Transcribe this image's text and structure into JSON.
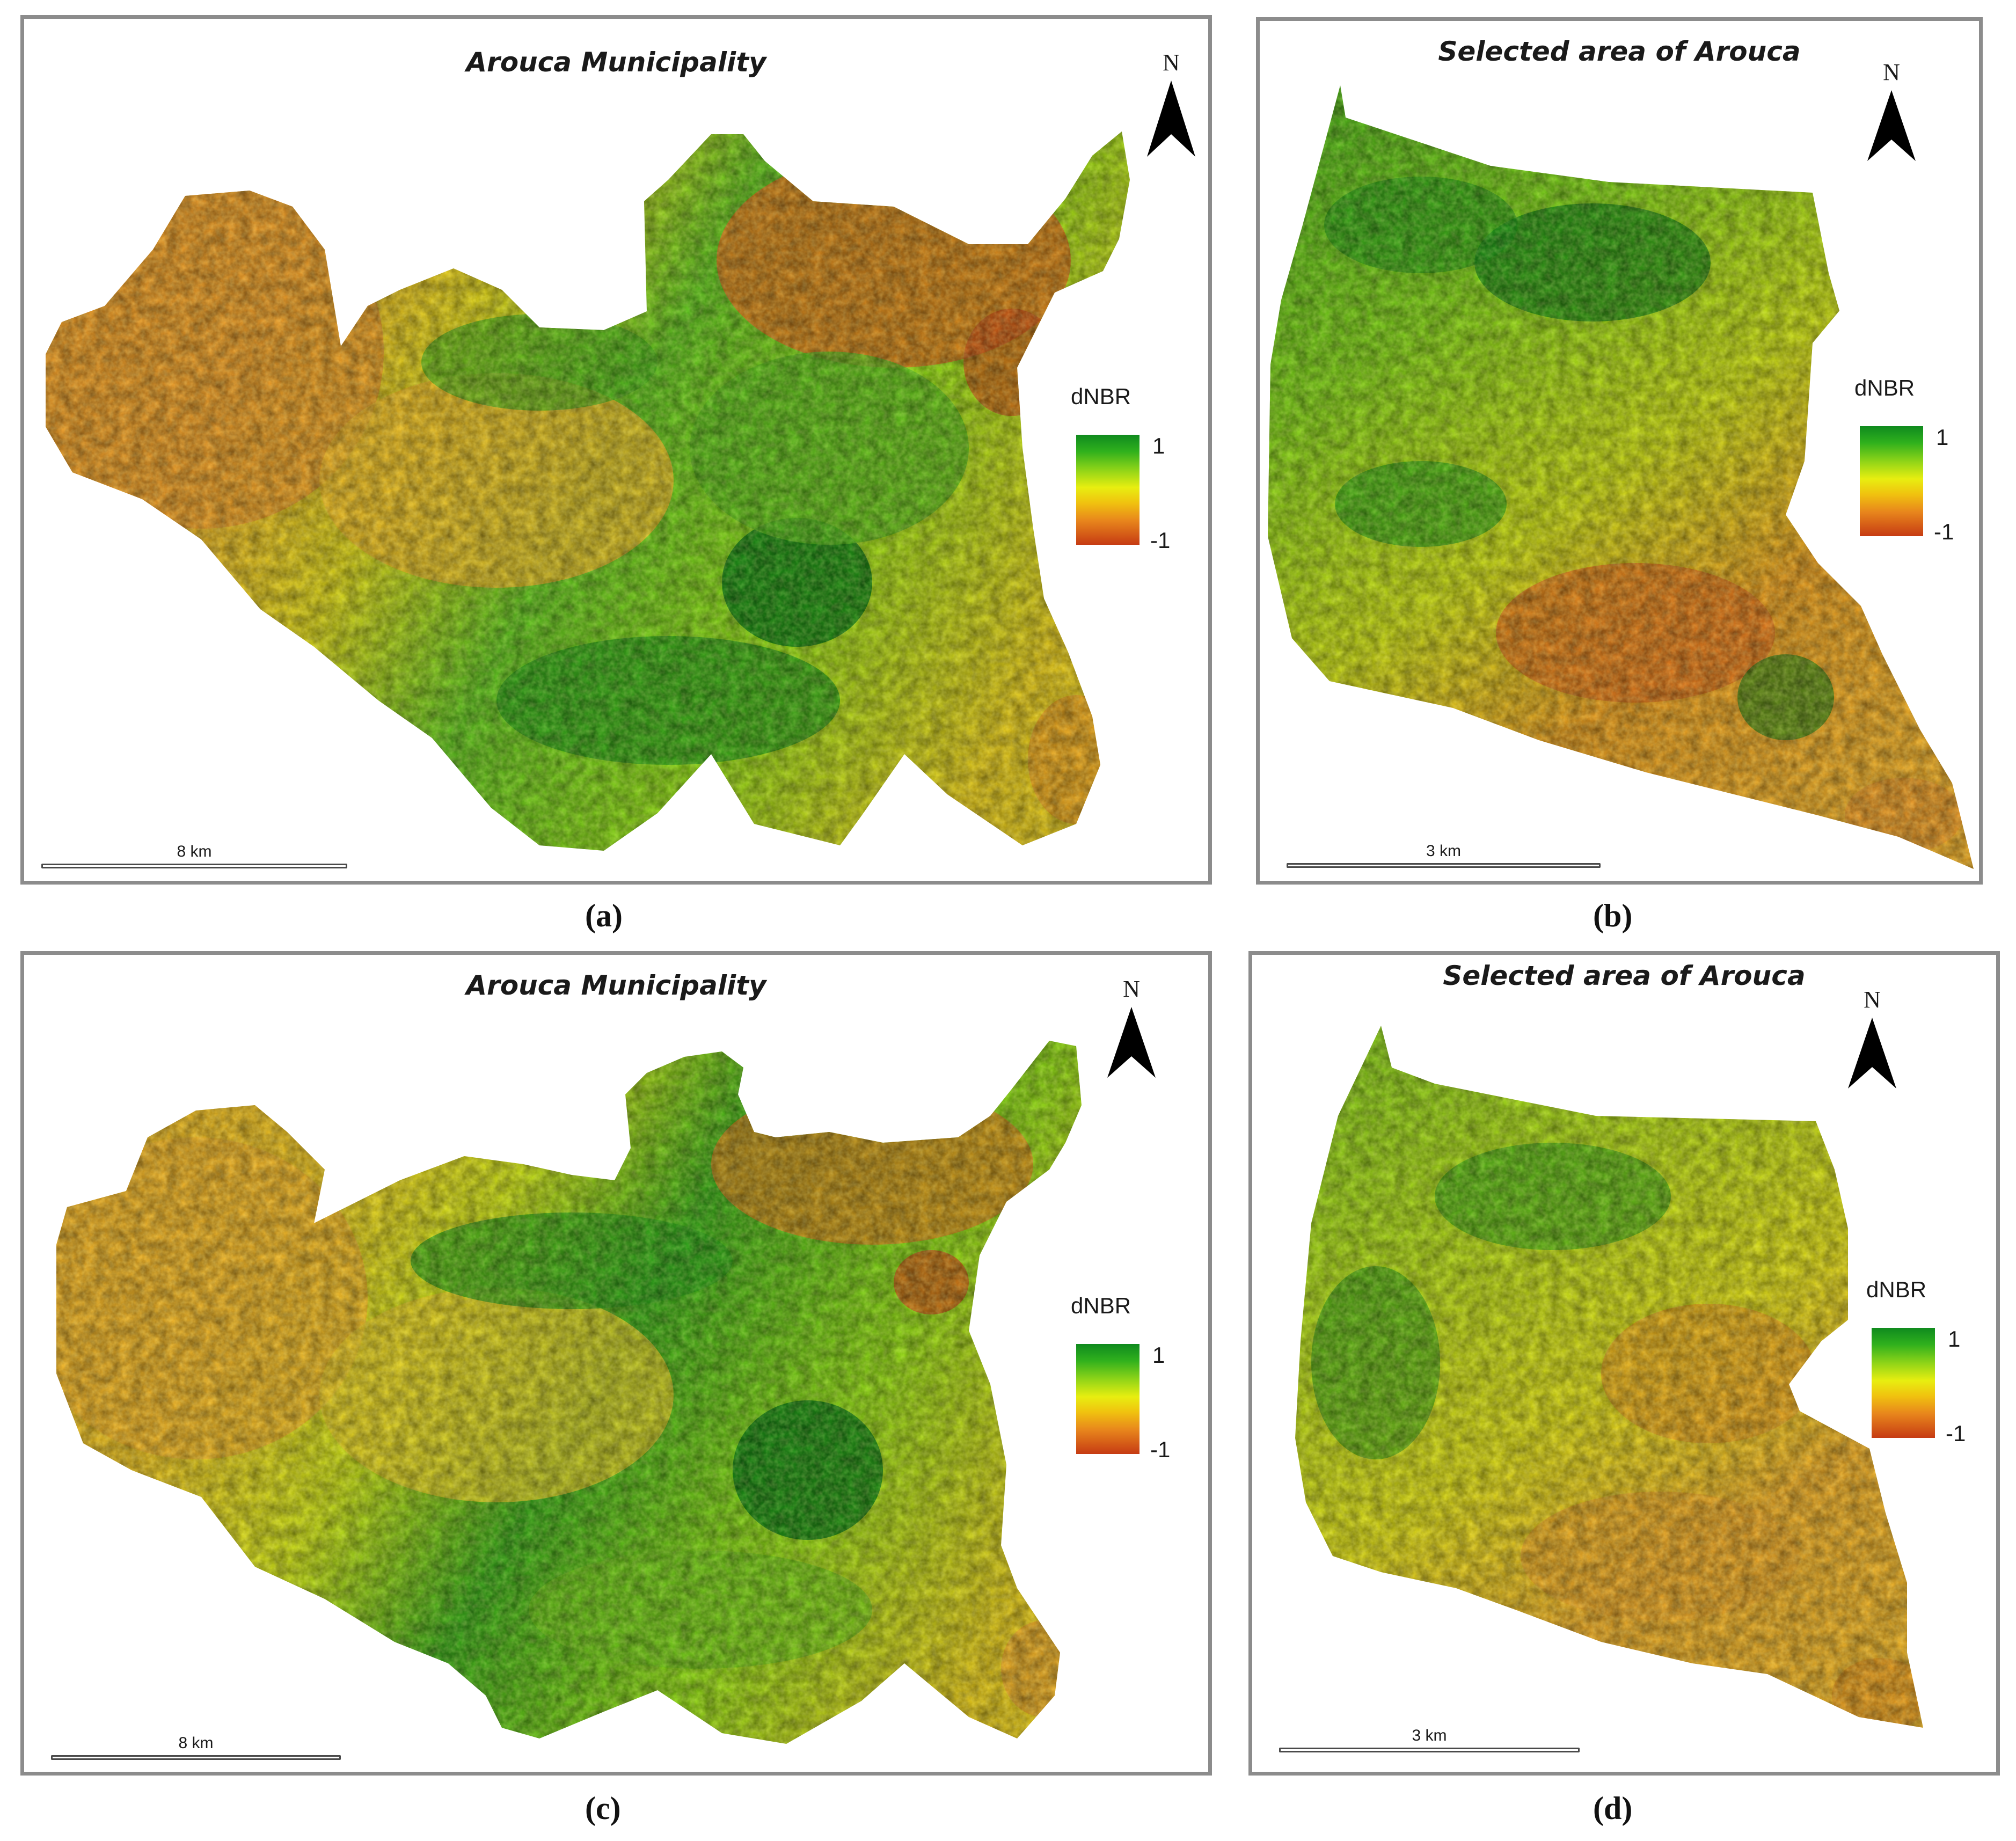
{
  "panels": [
    {
      "id": "a",
      "title": "Arouca Municipality",
      "north_label": "N",
      "legend_title": "dNBR",
      "legend_max": "1",
      "legend_min": "-1",
      "scale_label": "8 km",
      "caption": "(a)"
    },
    {
      "id": "b",
      "title": "Selected area of Arouca",
      "north_label": "N",
      "legend_title": "dNBR",
      "legend_max": "1",
      "legend_min": "-1",
      "scale_label": "3 km",
      "caption": "(b)"
    },
    {
      "id": "c",
      "title": "Arouca Municipality",
      "north_label": "N",
      "legend_title": "dNBR",
      "legend_max": "1",
      "legend_min": "-1",
      "scale_label": "8 km",
      "caption": "(c)"
    },
    {
      "id": "d",
      "title": "Selected area of Arouca",
      "north_label": "N",
      "legend_title": "dNBR",
      "legend_max": "1",
      "legend_min": "-1",
      "scale_label": "3 km",
      "caption": "(d)"
    }
  ],
  "colors": {
    "high_dnbr": "#0f8a1e",
    "mid_dnbr": "#e8ee10",
    "low_dnbr": "#c63b13",
    "frame": "#8c8c8c"
  }
}
